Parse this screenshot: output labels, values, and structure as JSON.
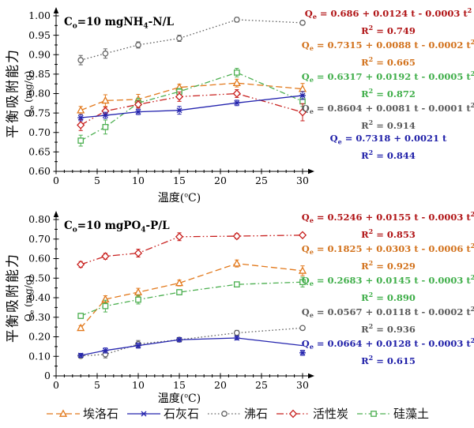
{
  "figure": {
    "background": "#ffffff"
  },
  "legend": {
    "items": [
      {
        "label": "埃洛石",
        "key": "halloysite",
        "color": "#E2791C",
        "dash": "dashed",
        "marker": "triangle"
      },
      {
        "label": "石灰石",
        "key": "limestone",
        "color": "#2424AE",
        "dash": "solid",
        "marker": "star"
      },
      {
        "label": "沸石",
        "key": "zeolite",
        "color": "#636363",
        "dash": "dotted",
        "marker": "circle"
      },
      {
        "label": "活性炭",
        "key": "activated-carbon",
        "color": "#C8201E",
        "dash": "dashdotdot",
        "marker": "diamond"
      },
      {
        "label": "硅藻土",
        "key": "diatomite",
        "color": "#4CAF50",
        "dash": "dashdot",
        "marker": "square"
      }
    ]
  },
  "chart_data": [
    {
      "type": "line",
      "title": "C_{o}=10 mgNH_{4}-N/L",
      "xlabel": "温度(^{o}C)",
      "ylabel": "平衡吸附能力",
      "ylabel_unit": "Q_{e} (mg/g)",
      "xlim": [
        0,
        30
      ],
      "ylim": [
        0.6,
        1.0
      ],
      "grid": false,
      "legend_position": "bottom-shared",
      "x_ticks": [
        0,
        5,
        10,
        15,
        20,
        25,
        30
      ],
      "y_ticks": [
        {
          "v": 1.0,
          "label": "1.00"
        },
        {
          "v": 0.95,
          "label": "0.95"
        },
        {
          "v": 0.9,
          "label": "0.90"
        },
        {
          "v": 0.85,
          "label": "0.85"
        },
        {
          "v": 0.8,
          "label": "0.80"
        },
        {
          "v": 0.75,
          "label": "0.75"
        },
        {
          "v": 0.7,
          "label": "0.70"
        },
        {
          "v": 0.65,
          "label": "0.65"
        },
        {
          "v": 0.6,
          "label": "0.60"
        }
      ],
      "x": [
        3,
        6,
        10,
        15,
        22,
        30
      ],
      "series": [
        {
          "name": "沸石",
          "key": "zeolite",
          "color": "#636363",
          "dash": "dotted",
          "marker": "circle",
          "values": [
            0.886,
            0.903,
            0.925,
            0.942,
            0.99,
            0.982
          ],
          "err": [
            0.012,
            0.012,
            0.008,
            0.008,
            0.006,
            0.005
          ]
        },
        {
          "name": "埃洛石",
          "key": "halloysite",
          "color": "#E2791C",
          "dash": "dashed",
          "marker": "triangle",
          "values": [
            0.757,
            0.782,
            0.785,
            0.816,
            0.827,
            0.812
          ],
          "err": [
            0.01,
            0.015,
            0.013,
            0.008,
            0.01,
            0.014
          ]
        },
        {
          "name": "硅藻土",
          "key": "diatomite",
          "color": "#4CAF50",
          "dash": "dashdot",
          "marker": "square",
          "values": [
            0.679,
            0.714,
            0.776,
            0.805,
            0.854,
            0.78
          ],
          "err": [
            0.014,
            0.018,
            0.012,
            0.008,
            0.011,
            0.013
          ]
        },
        {
          "name": "活性炭",
          "key": "activated-carbon",
          "color": "#C8201E",
          "dash": "dashdotdot",
          "marker": "diamond",
          "values": [
            0.719,
            0.755,
            0.772,
            0.792,
            0.8,
            0.752
          ],
          "err": [
            0.014,
            0.01,
            0.009,
            0.012,
            0.01,
            0.022
          ]
        },
        {
          "name": "石灰石",
          "key": "limestone",
          "color": "#2424AE",
          "dash": "solid",
          "marker": "star",
          "values": [
            0.738,
            0.744,
            0.753,
            0.757,
            0.776,
            0.795
          ],
          "err": [
            0.008,
            0.008,
            0.007,
            0.01,
            0.007,
            0.01
          ]
        }
      ],
      "equations": [
        {
          "eq": "Q_{e} = 0.686 + 0.0124 t - 0.0003 t^{2}",
          "r2": "R^{2} = 0.749",
          "color": "#B01315"
        },
        {
          "eq": "Q_{e} = 0.7315 + 0.0088 t - 0.0002 t^{2}",
          "r2": "R^{2} = 0.665",
          "color": "#D2711B"
        },
        {
          "eq": "Q_{e} = 0.6317 + 0.0192 t - 0.0005 t^{2}",
          "r2": "R^{2} = 0.872",
          "color": "#3FAE49"
        },
        {
          "eq": "Q_{e} = 0.8604 + 0.0081 t - 0.0001 t^{2}",
          "r2": "R^{2} = 0.914",
          "color": "#595959"
        },
        {
          "eq": "Q_{e} = 0.7318 + 0.0021 t",
          "r2": "R^{2} = 0.844",
          "color": "#1F1FA8"
        }
      ]
    },
    {
      "type": "line",
      "title": "C_{o}=10 mgPO_{4}-P/L",
      "xlabel": "温度(^{o}C)",
      "ylabel": "平衡吸附能力",
      "ylabel_unit": "Q_{e} (mg/g)",
      "xlim": [
        0,
        30
      ],
      "ylim": [
        0,
        0.8
      ],
      "grid": false,
      "legend_position": "bottom-shared",
      "x_ticks": [
        0,
        5,
        10,
        15,
        20,
        25,
        30
      ],
      "y_ticks": [
        {
          "v": 0.8,
          "label": "0.80"
        },
        {
          "v": 0.7,
          "label": "0.70"
        },
        {
          "v": 0.6,
          "label": "0.60"
        },
        {
          "v": 0.5,
          "label": "0.50"
        },
        {
          "v": 0.4,
          "label": "0.40"
        },
        {
          "v": 0.3,
          "label": "0.30"
        },
        {
          "v": 0.2,
          "label": "0.20"
        },
        {
          "v": 0.1,
          "label": "0.10"
        },
        {
          "v": 0,
          "label": "0"
        }
      ],
      "x": [
        3,
        6,
        10,
        15,
        22,
        30
      ],
      "series": [
        {
          "name": "沸石",
          "key": "zeolite",
          "color": "#636363",
          "dash": "dotted",
          "marker": "circle",
          "values": [
            0.102,
            0.11,
            0.163,
            0.185,
            0.22,
            0.245
          ],
          "err": [
            0.01,
            0.018,
            0.018,
            0.01,
            0.013,
            0.008
          ]
        },
        {
          "name": "埃洛石",
          "key": "halloysite",
          "color": "#E2791C",
          "dash": "dashed",
          "marker": "triangle",
          "values": [
            0.245,
            0.392,
            0.428,
            0.475,
            0.575,
            0.538
          ],
          "err": [
            0.012,
            0.018,
            0.02,
            0.015,
            0.018,
            0.025
          ]
        },
        {
          "name": "硅藻土",
          "key": "diatomite",
          "color": "#4CAF50",
          "dash": "dashdot",
          "marker": "square",
          "values": [
            0.307,
            0.357,
            0.39,
            0.428,
            0.468,
            0.48
          ],
          "err": [
            0.013,
            0.03,
            0.022,
            0.013,
            0.013,
            0.025
          ]
        },
        {
          "name": "活性炭",
          "key": "activated-carbon",
          "color": "#C8201E",
          "dash": "dashdotdot",
          "marker": "diamond",
          "values": [
            0.57,
            0.612,
            0.628,
            0.712,
            0.715,
            0.72
          ],
          "err": [
            0.015,
            0.015,
            0.02,
            0.02,
            0.013,
            0.01
          ]
        },
        {
          "name": "石灰石",
          "key": "limestone",
          "color": "#2424AE",
          "dash": "solid",
          "marker": "star",
          "values": [
            0.105,
            0.13,
            0.155,
            0.185,
            0.194,
            0.118
          ],
          "line_values": [
            0.105,
            0.13,
            0.155,
            0.185,
            0.194,
            0.155
          ],
          "err": [
            0.01,
            0.013,
            0.013,
            0.01,
            0.01,
            0.013
          ]
        }
      ],
      "equations": [
        {
          "eq": "Q_{e} = 0.5246 + 0.0155 t - 0.0003 t^{2}",
          "r2": "R^{2} = 0.853",
          "color": "#B01315"
        },
        {
          "eq": "Q_{e} = 0.1825 + 0.0303 t - 0.0006 t^{2}",
          "r2": "R^{2} = 0.929",
          "color": "#D2711B"
        },
        {
          "eq": "Q_{e} = 0.2683 + 0.0145 t - 0.0003 t^{2}",
          "r2": "R^{2} = 0.890",
          "color": "#3FAE49"
        },
        {
          "eq": "Q_{e} = 0.0567 + 0.0118 t - 0.0002 t^{2}",
          "r2": "R^{2} = 0.936",
          "color": "#595959"
        },
        {
          "eq": "Q_{e} = 0.0664 + 0.0128 t - 0.0003 t^{2}",
          "r2": "R^{2} = 0.615",
          "color": "#1F1FA8"
        }
      ]
    }
  ]
}
